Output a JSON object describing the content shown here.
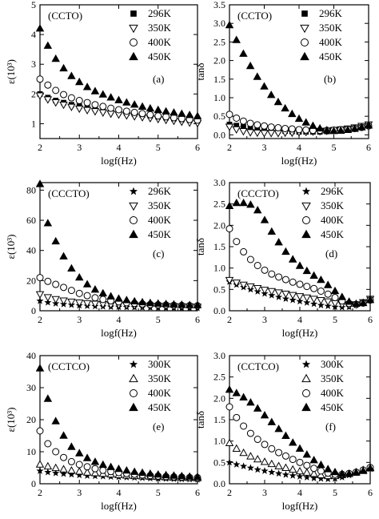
{
  "figure": {
    "panels": [
      {
        "id": "a",
        "sample_label": "(CCTO)",
        "panel_letter": "(a)",
        "xlabel": "logf(Hz)",
        "ylabel": "ε(10³)",
        "xticks": [
          "2",
          "3",
          "4",
          "5",
          "6"
        ],
        "yticks": [
          "1",
          "2",
          "3",
          "4",
          "5"
        ]
      },
      {
        "id": "b",
        "sample_label": "(CCTO)",
        "panel_letter": "(b)",
        "xlabel": "logf(Hz)",
        "ylabel": "tanδ",
        "xticks": [
          "2",
          "3",
          "4",
          "5",
          "6"
        ],
        "yticks": [
          "0.0",
          "0.5",
          "1.0",
          "1.5",
          "2.0",
          "2.5",
          "3.0",
          "3.5"
        ]
      },
      {
        "id": "c",
        "sample_label": "(CCCTO)",
        "panel_letter": "(c)",
        "xlabel": "logf(Hz)",
        "ylabel": "ε(10³)",
        "xticks": [
          "2",
          "3",
          "4",
          "5",
          "6"
        ],
        "yticks": [
          "0",
          "20",
          "40",
          "60",
          "80"
        ]
      },
      {
        "id": "d",
        "sample_label": "(CCCTO)",
        "panel_letter": "(d)",
        "xlabel": "logf(Hz)",
        "ylabel": "tanδ",
        "xticks": [
          "2",
          "3",
          "4",
          "5",
          "6"
        ],
        "yticks": [
          "0.0",
          "0.5",
          "1.0",
          "1.5",
          "2.0",
          "2.5",
          "3.0"
        ]
      },
      {
        "id": "e",
        "sample_label": "(CCTCO)",
        "panel_letter": "(e)",
        "xlabel": "logf(Hz)",
        "ylabel": "ε(10³)",
        "xticks": [
          "2",
          "3",
          "4",
          "5",
          "6"
        ],
        "yticks": [
          "0",
          "10",
          "20",
          "30",
          "40"
        ]
      },
      {
        "id": "f",
        "sample_label": "(CCTCO)",
        "panel_letter": "(f)",
        "xlabel": "logf(Hz)",
        "ylabel": "tanδ",
        "xticks": [
          "2",
          "3",
          "4",
          "5",
          "6"
        ],
        "yticks": [
          "0.0",
          "0.5",
          "1.0",
          "1.5",
          "2.0",
          "2.5",
          "3.0"
        ]
      }
    ]
  },
  "chart_data": [
    {
      "type": "scatter",
      "panel": "a",
      "xlim": [
        2,
        6
      ],
      "ylim": [
        0.5,
        5
      ],
      "legend": "top-right",
      "x": [
        2.0,
        2.2,
        2.4,
        2.6,
        2.8,
        3.0,
        3.2,
        3.4,
        3.6,
        3.8,
        4.0,
        4.2,
        4.4,
        4.6,
        4.8,
        5.0,
        5.2,
        5.4,
        5.6,
        5.8,
        6.0
      ],
      "series": [
        {
          "name": "296K",
          "marker": "square",
          "values": [
            2.0,
            1.88,
            1.78,
            1.71,
            1.64,
            1.59,
            1.54,
            1.5,
            1.46,
            1.42,
            1.39,
            1.35,
            1.32,
            1.29,
            1.26,
            1.23,
            1.2,
            1.17,
            1.14,
            1.12,
            1.1
          ]
        },
        {
          "name": "350K",
          "marker": "triangle-down-open",
          "values": [
            1.95,
            1.82,
            1.72,
            1.64,
            1.57,
            1.51,
            1.46,
            1.42,
            1.38,
            1.34,
            1.31,
            1.28,
            1.25,
            1.22,
            1.19,
            1.16,
            1.13,
            1.1,
            1.07,
            1.04,
            1.02
          ]
        },
        {
          "name": "400K",
          "marker": "circle-open",
          "values": [
            2.5,
            2.3,
            2.12,
            1.98,
            1.87,
            1.78,
            1.71,
            1.64,
            1.58,
            1.52,
            1.47,
            1.42,
            1.38,
            1.34,
            1.3,
            1.26,
            1.23,
            1.2,
            1.17,
            1.14,
            1.12
          ]
        },
        {
          "name": "450K",
          "marker": "triangle-up",
          "values": [
            4.2,
            3.62,
            3.18,
            2.86,
            2.6,
            2.4,
            2.23,
            2.09,
            1.98,
            1.88,
            1.79,
            1.71,
            1.64,
            1.57,
            1.51,
            1.46,
            1.41,
            1.37,
            1.33,
            1.29,
            1.25
          ]
        }
      ]
    },
    {
      "type": "scatter",
      "panel": "b",
      "xlim": [
        2,
        6
      ],
      "ylim": [
        -0.1,
        3.5
      ],
      "legend": "top-right",
      "x": [
        2.0,
        2.2,
        2.4,
        2.6,
        2.8,
        3.0,
        3.2,
        3.4,
        3.6,
        3.8,
        4.0,
        4.2,
        4.4,
        4.6,
        4.8,
        5.0,
        5.2,
        5.4,
        5.6,
        5.8,
        6.0
      ],
      "series": [
        {
          "name": "296K",
          "marker": "square",
          "values": [
            0.28,
            0.25,
            0.22,
            0.19,
            0.16,
            0.14,
            0.12,
            0.11,
            0.1,
            0.09,
            0.08,
            0.08,
            0.08,
            0.08,
            0.09,
            0.1,
            0.12,
            0.14,
            0.17,
            0.21,
            0.26
          ]
        },
        {
          "name": "350K",
          "marker": "triangle-down-open",
          "values": [
            0.22,
            0.15,
            0.1,
            0.07,
            0.06,
            0.05,
            0.05,
            0.05,
            0.06,
            0.06,
            0.07,
            0.08,
            0.09,
            0.1,
            0.11,
            0.13,
            0.15,
            0.17,
            0.2,
            0.24,
            0.28
          ]
        },
        {
          "name": "400K",
          "marker": "circle-open",
          "values": [
            0.55,
            0.45,
            0.37,
            0.31,
            0.27,
            0.24,
            0.21,
            0.19,
            0.17,
            0.16,
            0.14,
            0.13,
            0.12,
            0.12,
            0.12,
            0.13,
            0.14,
            0.15,
            0.17,
            0.2,
            0.24
          ]
        },
        {
          "name": "450K",
          "marker": "triangle-up",
          "values": [
            2.95,
            2.55,
            2.18,
            1.85,
            1.56,
            1.3,
            1.07,
            0.88,
            0.71,
            0.56,
            0.43,
            0.33,
            0.24,
            0.17,
            0.12,
            0.1,
            0.11,
            0.13,
            0.16,
            0.2,
            0.25
          ]
        }
      ]
    },
    {
      "type": "scatter",
      "panel": "c",
      "xlim": [
        2,
        6
      ],
      "ylim": [
        0,
        85
      ],
      "legend": "top-right",
      "x": [
        2.0,
        2.2,
        2.4,
        2.6,
        2.8,
        3.0,
        3.2,
        3.4,
        3.6,
        3.8,
        4.0,
        4.2,
        4.4,
        4.6,
        4.8,
        5.0,
        5.2,
        5.4,
        5.6,
        5.8,
        6.0
      ],
      "series": [
        {
          "name": "296K",
          "marker": "star",
          "values": [
            6.5,
            5.5,
            4.8,
            4.3,
            3.9,
            3.5,
            3.2,
            3.0,
            2.8,
            2.6,
            2.5,
            2.4,
            2.3,
            2.2,
            2.1,
            2.0,
            1.9,
            1.9,
            1.8,
            1.8,
            1.7
          ]
        },
        {
          "name": "350K",
          "marker": "triangle-down-open",
          "values": [
            11.0,
            9.0,
            7.7,
            6.8,
            6.1,
            5.5,
            5.0,
            4.7,
            4.4,
            4.1,
            3.9,
            3.7,
            3.5,
            3.4,
            3.3,
            3.2,
            3.1,
            3.0,
            2.9,
            2.8,
            2.7
          ]
        },
        {
          "name": "400K",
          "marker": "circle-open",
          "values": [
            22.0,
            19.5,
            17.5,
            15.5,
            13.5,
            11.5,
            10.0,
            8.6,
            7.5,
            6.6,
            5.9,
            5.3,
            4.9,
            4.5,
            4.2,
            4.0,
            3.8,
            3.6,
            3.5,
            3.4,
            3.3
          ]
        },
        {
          "name": "450K",
          "marker": "triangle-up",
          "values": [
            84.0,
            58.0,
            46.0,
            36.0,
            28.0,
            22.0,
            17.5,
            14.0,
            11.5,
            9.5,
            8.0,
            7.0,
            6.2,
            5.6,
            5.1,
            4.7,
            4.4,
            4.1,
            3.9,
            3.7,
            3.6
          ]
        }
      ]
    },
    {
      "type": "scatter",
      "panel": "d",
      "xlim": [
        2,
        6
      ],
      "ylim": [
        0,
        3
      ],
      "legend": "top-right",
      "x": [
        2.0,
        2.2,
        2.4,
        2.6,
        2.8,
        3.0,
        3.2,
        3.4,
        3.6,
        3.8,
        4.0,
        4.2,
        4.4,
        4.6,
        4.8,
        5.0,
        5.2,
        5.4,
        5.6,
        5.8,
        6.0
      ],
      "series": [
        {
          "name": "296K",
          "marker": "star",
          "values": [
            0.68,
            0.61,
            0.55,
            0.5,
            0.45,
            0.4,
            0.36,
            0.32,
            0.28,
            0.25,
            0.22,
            0.19,
            0.16,
            0.13,
            0.11,
            0.09,
            0.08,
            0.09,
            0.13,
            0.2,
            0.28
          ]
        },
        {
          "name": "350K",
          "marker": "triangle-down-open",
          "values": [
            0.72,
            0.66,
            0.61,
            0.57,
            0.53,
            0.49,
            0.46,
            0.43,
            0.4,
            0.37,
            0.34,
            0.31,
            0.28,
            0.25,
            0.22,
            0.18,
            0.15,
            0.13,
            0.15,
            0.2,
            0.28
          ]
        },
        {
          "name": "400K",
          "marker": "circle-open",
          "values": [
            1.92,
            1.62,
            1.38,
            1.2,
            1.06,
            0.95,
            0.86,
            0.79,
            0.73,
            0.67,
            0.62,
            0.57,
            0.52,
            0.46,
            0.39,
            0.31,
            0.23,
            0.17,
            0.15,
            0.18,
            0.25
          ]
        },
        {
          "name": "450K",
          "marker": "triangle-up",
          "values": [
            2.45,
            2.52,
            2.52,
            2.48,
            2.35,
            2.12,
            1.85,
            1.6,
            1.38,
            1.2,
            1.05,
            0.93,
            0.82,
            0.72,
            0.6,
            0.46,
            0.32,
            0.21,
            0.16,
            0.18,
            0.25
          ]
        }
      ]
    },
    {
      "type": "scatter",
      "panel": "e",
      "xlim": [
        2,
        6
      ],
      "ylim": [
        0,
        40
      ],
      "legend": "top-right",
      "x": [
        2.0,
        2.2,
        2.4,
        2.6,
        2.8,
        3.0,
        3.2,
        3.4,
        3.6,
        3.8,
        4.0,
        4.2,
        4.4,
        4.6,
        4.8,
        5.0,
        5.2,
        5.4,
        5.6,
        5.8,
        6.0
      ],
      "series": [
        {
          "name": "300K",
          "marker": "star",
          "values": [
            4.0,
            3.6,
            3.3,
            3.1,
            2.9,
            2.7,
            2.5,
            2.4,
            2.3,
            2.2,
            2.1,
            2.0,
            1.9,
            1.8,
            1.7,
            1.6,
            1.55,
            1.5,
            1.45,
            1.4,
            1.35
          ]
        },
        {
          "name": "350K",
          "marker": "triangle-up-open",
          "values": [
            6.0,
            5.4,
            4.9,
            4.5,
            4.1,
            3.8,
            3.5,
            3.3,
            3.1,
            2.9,
            2.7,
            2.55,
            2.4,
            2.3,
            2.2,
            2.1,
            2.0,
            1.9,
            1.85,
            1.8,
            1.75
          ]
        },
        {
          "name": "400K",
          "marker": "circle-open",
          "values": [
            16.5,
            12.5,
            10.0,
            8.2,
            6.9,
            6.0,
            5.3,
            4.7,
            4.2,
            3.8,
            3.5,
            3.2,
            2.95,
            2.75,
            2.55,
            2.4,
            2.25,
            2.15,
            2.05,
            1.95,
            1.9
          ]
        },
        {
          "name": "450K",
          "marker": "triangle-up",
          "values": [
            36.0,
            26.5,
            19.5,
            15.0,
            11.5,
            9.5,
            8.0,
            6.8,
            5.9,
            5.2,
            4.6,
            4.1,
            3.7,
            3.4,
            3.1,
            2.85,
            2.65,
            2.5,
            2.35,
            2.2,
            2.1
          ]
        }
      ]
    },
    {
      "type": "scatter",
      "panel": "f",
      "xlim": [
        2,
        6
      ],
      "ylim": [
        0,
        3
      ],
      "legend": "top-right",
      "x": [
        2.0,
        2.2,
        2.4,
        2.6,
        2.8,
        3.0,
        3.2,
        3.4,
        3.6,
        3.8,
        4.0,
        4.2,
        4.4,
        4.6,
        4.8,
        5.0,
        5.2,
        5.4,
        5.6,
        5.8,
        6.0
      ],
      "series": [
        {
          "name": "300K",
          "marker": "star",
          "values": [
            0.5,
            0.45,
            0.41,
            0.37,
            0.33,
            0.3,
            0.27,
            0.24,
            0.21,
            0.19,
            0.17,
            0.15,
            0.13,
            0.12,
            0.11,
            0.12,
            0.15,
            0.2,
            0.25,
            0.3,
            0.35
          ]
        },
        {
          "name": "350K",
          "marker": "triangle-up-open",
          "values": [
            0.95,
            0.82,
            0.72,
            0.64,
            0.57,
            0.51,
            0.46,
            0.41,
            0.37,
            0.33,
            0.29,
            0.26,
            0.23,
            0.2,
            0.18,
            0.18,
            0.2,
            0.23,
            0.27,
            0.32,
            0.38
          ]
        },
        {
          "name": "400K",
          "marker": "circle-open",
          "values": [
            1.8,
            1.55,
            1.35,
            1.18,
            1.04,
            0.92,
            0.82,
            0.73,
            0.65,
            0.57,
            0.5,
            0.43,
            0.36,
            0.3,
            0.25,
            0.22,
            0.22,
            0.24,
            0.27,
            0.32,
            0.38
          ]
        },
        {
          "name": "450K",
          "marker": "triangle-up",
          "values": [
            2.2,
            2.12,
            2.02,
            1.9,
            1.76,
            1.6,
            1.44,
            1.28,
            1.12,
            0.96,
            0.82,
            0.68,
            0.55,
            0.44,
            0.34,
            0.27,
            0.23,
            0.23,
            0.26,
            0.3,
            0.36
          ]
        }
      ]
    }
  ]
}
